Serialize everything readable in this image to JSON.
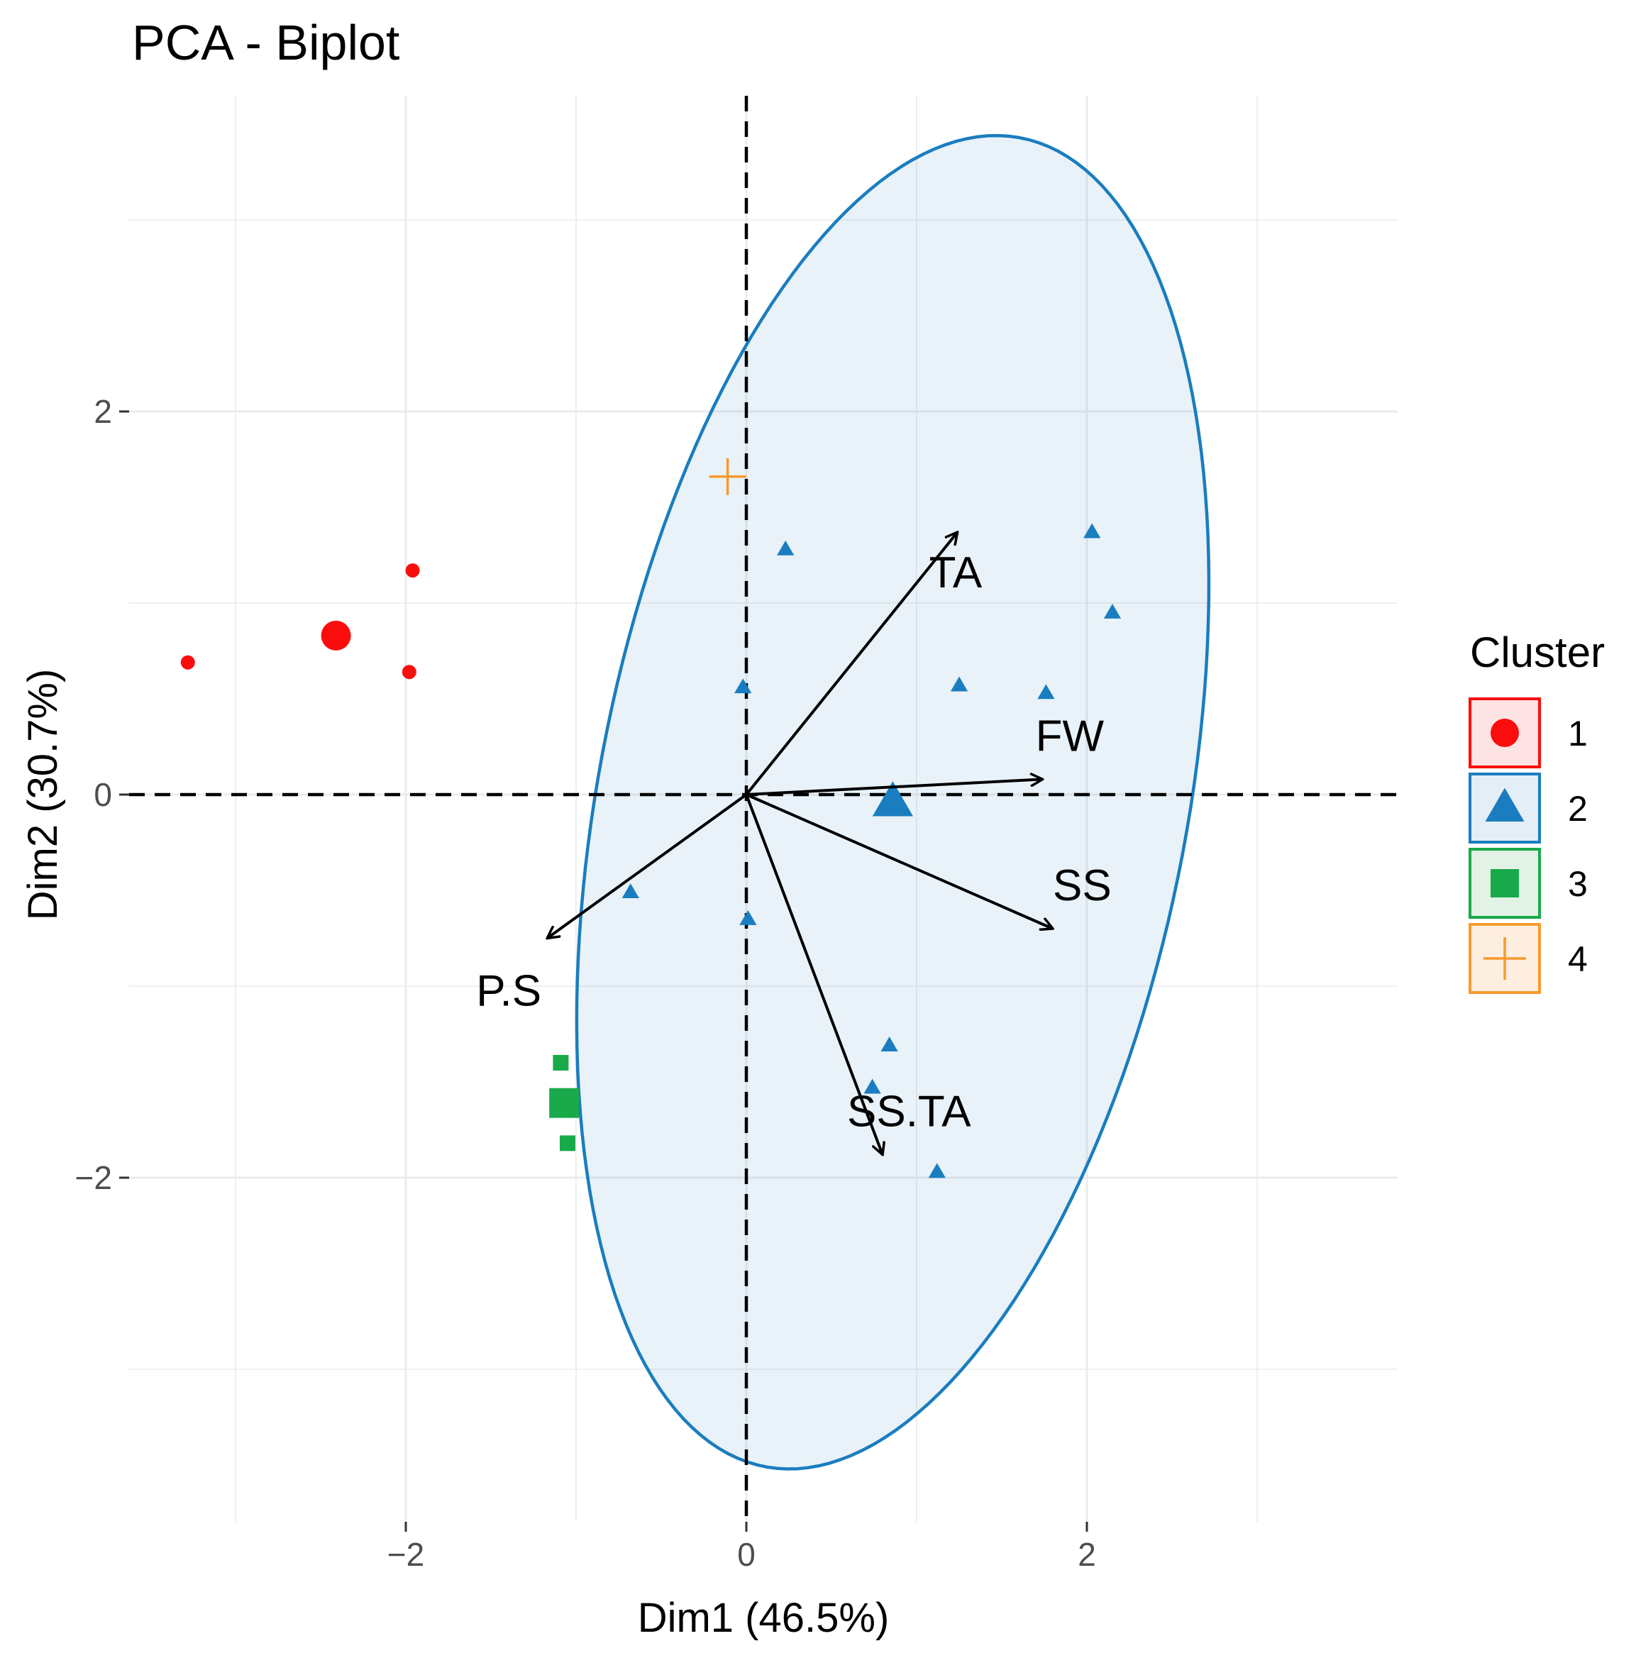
{
  "chart_data": {
    "type": "scatter",
    "title": "PCA - Biplot",
    "xlabel": "Dim1 (46.5%)",
    "ylabel": "Dim2 (30.7%)",
    "xlim": [
      -3.6,
      3.8
    ],
    "ylim": [
      -3.6,
      3.65
    ],
    "xticks": [
      -2,
      0,
      2
    ],
    "yticks": [
      -2,
      0,
      2
    ],
    "xtick_labels": [
      "−2",
      "0",
      "2"
    ],
    "ytick_labels": [
      "−2",
      "0",
      "2"
    ],
    "grid": true,
    "legend": {
      "title": "Cluster",
      "position": "right",
      "entries": [
        {
          "label": "1",
          "color": "#fc0d0d",
          "shape": "circle",
          "fill": "#fde3e3"
        },
        {
          "label": "2",
          "color": "#1a7dbf",
          "shape": "triangle",
          "fill": "#e4eef7"
        },
        {
          "label": "3",
          "color": "#19a94a",
          "shape": "square",
          "fill": "#e2f3e6"
        },
        {
          "label": "4",
          "color": "#f79a2d",
          "shape": "cross",
          "fill": "#fdeee0"
        }
      ]
    },
    "series": [
      {
        "name": "1",
        "color": "#fc0d0d",
        "shape": "circle",
        "points": [
          [
            -3.28,
            0.69
          ],
          [
            -1.96,
            1.17
          ],
          [
            -1.98,
            0.64
          ]
        ],
        "centroid": [
          -2.41,
          0.83
        ]
      },
      {
        "name": "2",
        "color": "#1a7dbf",
        "shape": "triangle",
        "points": [
          [
            0.23,
            1.28
          ],
          [
            -0.02,
            0.56
          ],
          [
            1.25,
            0.57
          ],
          [
            1.76,
            0.53
          ],
          [
            2.03,
            1.37
          ],
          [
            2.15,
            0.95
          ],
          [
            -0.68,
            -0.51
          ],
          [
            0.01,
            -0.65
          ],
          [
            0.84,
            -1.31
          ],
          [
            0.74,
            -1.53
          ],
          [
            1.12,
            -1.97
          ]
        ],
        "centroid": [
          0.86,
          -0.04
        ],
        "ellipse": {
          "center": [
            0.86,
            -0.04
          ],
          "semi_major": 3.55,
          "semi_minor": 1.72,
          "angle_deg": 77
        }
      },
      {
        "name": "3",
        "color": "#19a94a",
        "shape": "square",
        "points": [
          [
            -1.09,
            -1.4
          ],
          [
            -1.05,
            -1.82
          ]
        ],
        "centroid": [
          -1.07,
          -1.61
        ]
      },
      {
        "name": "4",
        "color": "#f79a2d",
        "shape": "cross",
        "points": [
          [
            -0.11,
            1.66
          ]
        ],
        "centroid": [
          -0.11,
          1.66
        ]
      }
    ],
    "variables": [
      {
        "name": "TA",
        "x": 1.24,
        "y": 1.37
      },
      {
        "name": "FW",
        "x": 1.74,
        "y": 0.08
      },
      {
        "name": "SS",
        "x": 1.8,
        "y": -0.7
      },
      {
        "name": "P.S",
        "x": -1.17,
        "y": -0.75
      },
      {
        "name": "SS.TA",
        "x": 0.8,
        "y": -1.88
      }
    ]
  }
}
